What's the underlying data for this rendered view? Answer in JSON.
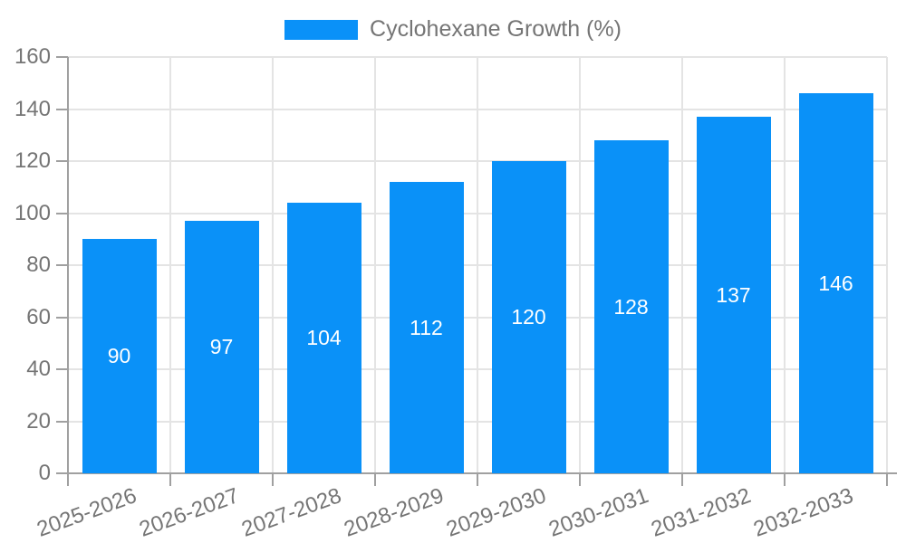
{
  "legend": {
    "label": "Cyclohexane Growth (%)"
  },
  "chart_data": {
    "type": "bar",
    "title": "",
    "xlabel": "",
    "ylabel": "",
    "categories": [
      "2025-2026",
      "2026-2027",
      "2027-2028",
      "2028-2029",
      "2029-2030",
      "2030-2031",
      "2031-2032",
      "2032-2033"
    ],
    "values": [
      90,
      97,
      104,
      112,
      120,
      128,
      137,
      146
    ],
    "series_name": "Cyclohexane Growth (%)",
    "ylim": [
      0,
      160
    ],
    "ytick_step": 20,
    "yticks": [
      0,
      20,
      40,
      60,
      80,
      100,
      120,
      140,
      160
    ],
    "grid": "both",
    "legend_position": "top-center",
    "x_label_rotation": -20,
    "colors": {
      "bar": "#0a91f8",
      "bar_label": "#ffffff",
      "axis_text": "#757575",
      "grid_line": "#e4e4e4",
      "axis_line": "#a0a0a0",
      "background": "#ffffff"
    }
  }
}
